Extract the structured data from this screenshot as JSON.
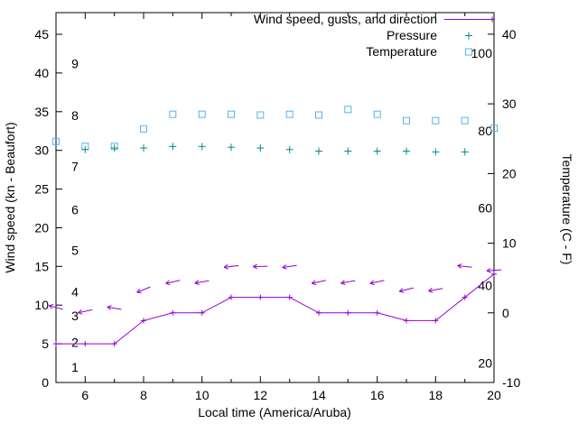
{
  "chart_data": {
    "type": "line",
    "title": "",
    "xlabel": "Local time (America/Aruba)",
    "ylabel_left": "Wind speed (kn - Beaufort)",
    "ylabel_right": "Temperature (C - F)",
    "x_range": [
      5,
      20
    ],
    "x_major_ticks": [
      6,
      8,
      10,
      12,
      14,
      16,
      18,
      20
    ],
    "x_minor_ticks": [
      5,
      7,
      9,
      11,
      13,
      15,
      17,
      19
    ],
    "wind_axis": {
      "range": [
        0,
        47.8
      ],
      "ticks": [
        0,
        5,
        10,
        15,
        20,
        25,
        30,
        35,
        40,
        45
      ]
    },
    "temp_axis": {
      "range": [
        -10,
        43.1
      ],
      "ticks": [
        -10,
        0,
        10,
        20,
        30,
        40
      ]
    },
    "beaufort_labels": [
      [
        "1",
        2
      ],
      [
        "2",
        5.2
      ],
      [
        "3",
        8.6
      ],
      [
        "4",
        11.7
      ],
      [
        "5",
        17.1
      ],
      [
        "6",
        22.3
      ],
      [
        "7",
        27.9
      ],
      [
        "8",
        34.5
      ],
      [
        "9",
        41.2
      ]
    ],
    "fahrenheit_labels": [
      [
        "20",
        20
      ],
      [
        "40",
        40
      ],
      [
        "60",
        60
      ],
      [
        "80",
        80
      ],
      [
        "100",
        100
      ]
    ],
    "legend_position": "top-right-inside",
    "grid": false,
    "series": [
      {
        "name": "Wind speed, gusts, and direction",
        "type": "line-with-direction-arrows",
        "color": "#9400d3",
        "x": [
          5,
          6,
          7,
          8,
          9,
          10,
          11,
          12,
          13,
          14,
          15,
          16,
          17,
          18,
          19,
          20
        ],
        "wind_kn": [
          5,
          5,
          5,
          8,
          9,
          9,
          11,
          11,
          11,
          9,
          9,
          9,
          8,
          8,
          11,
          14
        ],
        "gust_kn": [
          9.7,
          9.2,
          9.6,
          12,
          13,
          13,
          15,
          15,
          15,
          13,
          13,
          13,
          12,
          12,
          15,
          14.5
        ],
        "arrow_tilt_deg": [
          -15,
          12,
          -10,
          22,
          12,
          10,
          6,
          2,
          8,
          12,
          10,
          12,
          14,
          10,
          -6,
          4
        ]
      },
      {
        "name": "Pressure",
        "type": "points-plus",
        "color": "#008b8b",
        "x": [
          6,
          7,
          8,
          9,
          10,
          11,
          12,
          13,
          14,
          15,
          16,
          17,
          18,
          19
        ],
        "values": [
          30.1,
          30.3,
          30.3,
          30.5,
          30.5,
          30.4,
          30.3,
          30.1,
          29.9,
          29.9,
          29.9,
          29.9,
          29.8,
          29.8
        ]
      },
      {
        "name": "Temperature",
        "type": "points-square",
        "color": "#56b4e9",
        "x": [
          5,
          6,
          7,
          8,
          9,
          10,
          11,
          12,
          13,
          14,
          15,
          16,
          17,
          18,
          19,
          20
        ],
        "values_c": [
          24.6,
          23.9,
          23.9,
          26.4,
          28.5,
          28.5,
          28.5,
          28.4,
          28.5,
          28.4,
          29.2,
          28.5,
          27.6,
          27.6,
          27.6,
          26.5
        ]
      }
    ]
  }
}
